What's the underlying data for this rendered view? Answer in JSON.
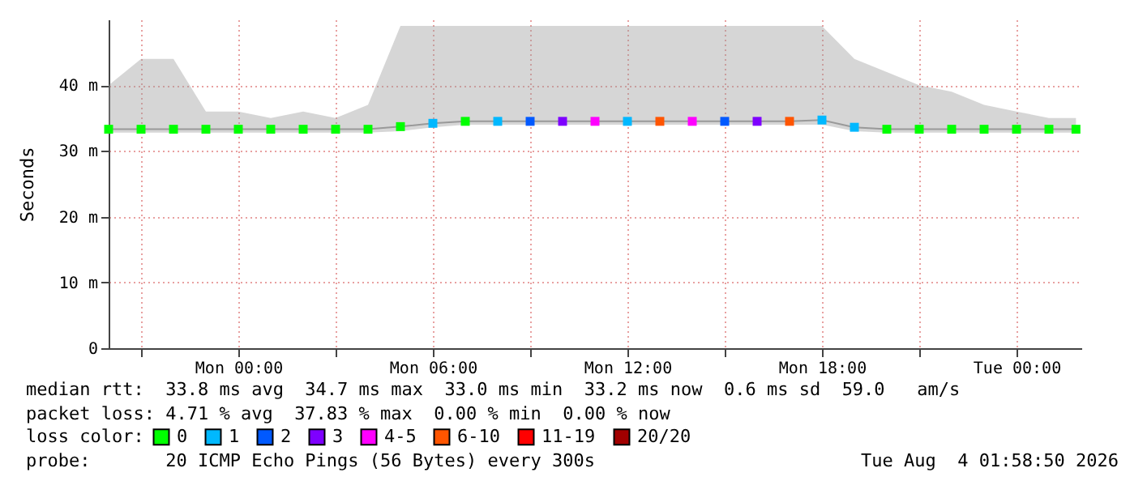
{
  "chart_data": {
    "type": "line",
    "ylabel": "Seconds",
    "legend_title": "loss color:",
    "legend": "bottom",
    "grid": true,
    "annotations": [
      "median rtt:  33.8 ms avg  34.7 ms max  33.0 ms min  33.2 ms now  0.6 ms sd  59.0   am/s",
      "packet loss: 4.71 % avg  37.83 % max  0.00 % min  0.00 % now",
      "probe:       20 ICMP Echo Pings (56 Bytes) every 300s",
      "Tue Aug  4 01:58:50 2026"
    ],
    "x": [
      "2026-08-02T20:00",
      "2026-08-02T21:00",
      "2026-08-02T22:00",
      "2026-08-02T23:00",
      "2026-08-03T00:00",
      "2026-08-03T01:00",
      "2026-08-03T02:00",
      "2026-08-03T03:00",
      "2026-08-03T04:00",
      "2026-08-03T05:00",
      "2026-08-03T06:00",
      "2026-08-03T07:00",
      "2026-08-03T08:00",
      "2026-08-03T09:00",
      "2026-08-03T10:00",
      "2026-08-03T11:00",
      "2026-08-03T12:00",
      "2026-08-03T13:00",
      "2026-08-03T14:00",
      "2026-08-03T15:00",
      "2026-08-03T16:00",
      "2026-08-03T17:00",
      "2026-08-03T18:00",
      "2026-08-03T19:00",
      "2026-08-03T20:00",
      "2026-08-03T21:00",
      "2026-08-03T22:00",
      "2026-08-03T23:00",
      "2026-08-04T00:00",
      "2026-08-04T01:00",
      "2026-08-04T01:50"
    ],
    "xlim": [
      "2026-08-02T20:00",
      "2026-08-04T02:00"
    ],
    "xticks": [
      {
        "value": "2026-08-02T21:00",
        "label": null
      },
      {
        "value": "2026-08-03T00:00",
        "label": "Mon 00:00"
      },
      {
        "value": "2026-08-03T03:00",
        "label": null
      },
      {
        "value": "2026-08-03T06:00",
        "label": "Mon 06:00"
      },
      {
        "value": "2026-08-03T09:00",
        "label": null
      },
      {
        "value": "2026-08-03T12:00",
        "label": "Mon 12:00"
      },
      {
        "value": "2026-08-03T15:00",
        "label": null
      },
      {
        "value": "2026-08-03T18:00",
        "label": "Mon 18:00"
      },
      {
        "value": "2026-08-03T21:00",
        "label": null
      },
      {
        "value": "2026-08-04T00:00",
        "label": "Tue 00:00"
      }
    ],
    "ylim": [
      0,
      50
    ],
    "yticks": [
      0,
      {
        "value": 10,
        "label": "10 m"
      },
      {
        "value": 20,
        "label": "20 m"
      },
      {
        "value": 30,
        "label": "30 m"
      },
      {
        "value": 40,
        "label": "40 m"
      }
    ],
    "series": [
      {
        "color": "#999999",
        "values": [
          33.3,
          33.3,
          33.3,
          33.3,
          33.3,
          33.3,
          33.3,
          33.3,
          33.3,
          33.7,
          34.2,
          34.5,
          34.5,
          34.5,
          34.5,
          34.5,
          34.5,
          34.5,
          34.5,
          34.5,
          34.5,
          34.5,
          34.7,
          33.6,
          33.3,
          33.3,
          33.3,
          33.3,
          33.3,
          33.3,
          33.3
        ],
        "lower": [
          32.8,
          32.8,
          32.8,
          32.8,
          32.8,
          32.8,
          32.8,
          32.8,
          32.8,
          33,
          33.6,
          34,
          34,
          34,
          34,
          34,
          34,
          34,
          34,
          34,
          34,
          34,
          34,
          33,
          32.8,
          32.8,
          32.8,
          32.8,
          32.8,
          32.8,
          32.8
        ],
        "upper": [
          40,
          44,
          44,
          36,
          36,
          35,
          36,
          35,
          37,
          49,
          49,
          49,
          49,
          49,
          49,
          49,
          49,
          49,
          49,
          49,
          49,
          49,
          49,
          44,
          42,
          40,
          39,
          37,
          36,
          35,
          35
        ]
      },
      {
        "type": "scatter",
        "marker": "square",
        "name": "0",
        "color": "#00ff00",
        "values": [
          33.3,
          33.3,
          33.3,
          33.3,
          33.3,
          33.3,
          33.3,
          33.3,
          33.3,
          33.7,
          null,
          34.5,
          null,
          null,
          null,
          null,
          null,
          null,
          null,
          null,
          null,
          null,
          null,
          null,
          33.3,
          33.3,
          33.3,
          33.3,
          33.3,
          33.3,
          33.3
        ]
      },
      {
        "type": "scatter",
        "marker": "square",
        "name": "1",
        "color": "#00b8ff",
        "values": [
          null,
          null,
          null,
          null,
          null,
          null,
          null,
          null,
          null,
          null,
          34.2,
          null,
          34.5,
          null,
          null,
          null,
          34.5,
          null,
          null,
          null,
          null,
          null,
          34.7,
          33.6,
          null,
          null,
          null,
          null,
          null,
          null,
          null
        ]
      },
      {
        "type": "scatter",
        "marker": "square",
        "name": "2",
        "color": "#0059ff",
        "values": [
          null,
          null,
          null,
          null,
          null,
          null,
          null,
          null,
          null,
          null,
          null,
          null,
          null,
          34.5,
          null,
          null,
          null,
          null,
          null,
          34.5,
          null,
          null,
          null,
          null,
          null,
          null,
          null,
          null,
          null,
          null,
          null
        ]
      },
      {
        "type": "scatter",
        "marker": "square",
        "name": "3",
        "color": "#7e00ff",
        "values": [
          null,
          null,
          null,
          null,
          null,
          null,
          null,
          null,
          null,
          null,
          null,
          null,
          null,
          null,
          34.5,
          null,
          null,
          null,
          null,
          null,
          34.5,
          null,
          null,
          null,
          null,
          null,
          null,
          null,
          null,
          null,
          null
        ]
      },
      {
        "type": "scatter",
        "marker": "square",
        "name": "4-5",
        "color": "#ff00ff",
        "values": [
          null,
          null,
          null,
          null,
          null,
          null,
          null,
          null,
          null,
          null,
          null,
          null,
          null,
          null,
          null,
          34.5,
          null,
          null,
          34.5,
          null,
          null,
          null,
          null,
          null,
          null,
          null,
          null,
          null,
          null,
          null,
          null
        ]
      },
      {
        "type": "scatter",
        "marker": "square",
        "name": "6-10",
        "color": "#ff5500",
        "values": [
          null,
          null,
          null,
          null,
          null,
          null,
          null,
          null,
          null,
          null,
          null,
          null,
          null,
          null,
          null,
          null,
          null,
          34.5,
          null,
          null,
          null,
          34.5,
          null,
          null,
          null,
          null,
          null,
          null,
          null,
          null,
          null
        ]
      },
      {
        "type": "scatter",
        "marker": "square",
        "name": "11-19",
        "color": "#ff0000",
        "values": [
          null,
          null,
          null,
          null,
          null,
          null,
          null,
          null,
          null,
          null,
          null,
          null,
          null,
          null,
          null,
          null,
          null,
          null,
          null,
          null,
          null,
          null,
          null,
          null,
          null,
          null,
          null,
          null,
          null,
          null,
          null
        ]
      },
      {
        "type": "scatter",
        "marker": "square",
        "name": "20/20",
        "color": "#a10000",
        "values": [
          null,
          null,
          null,
          null,
          null,
          null,
          null,
          null,
          null,
          null,
          null,
          null,
          null,
          null,
          null,
          null,
          null,
          null,
          null,
          null,
          null,
          null,
          null,
          null,
          null,
          null,
          null,
          null,
          null,
          null,
          null
        ]
      }
    ]
  }
}
